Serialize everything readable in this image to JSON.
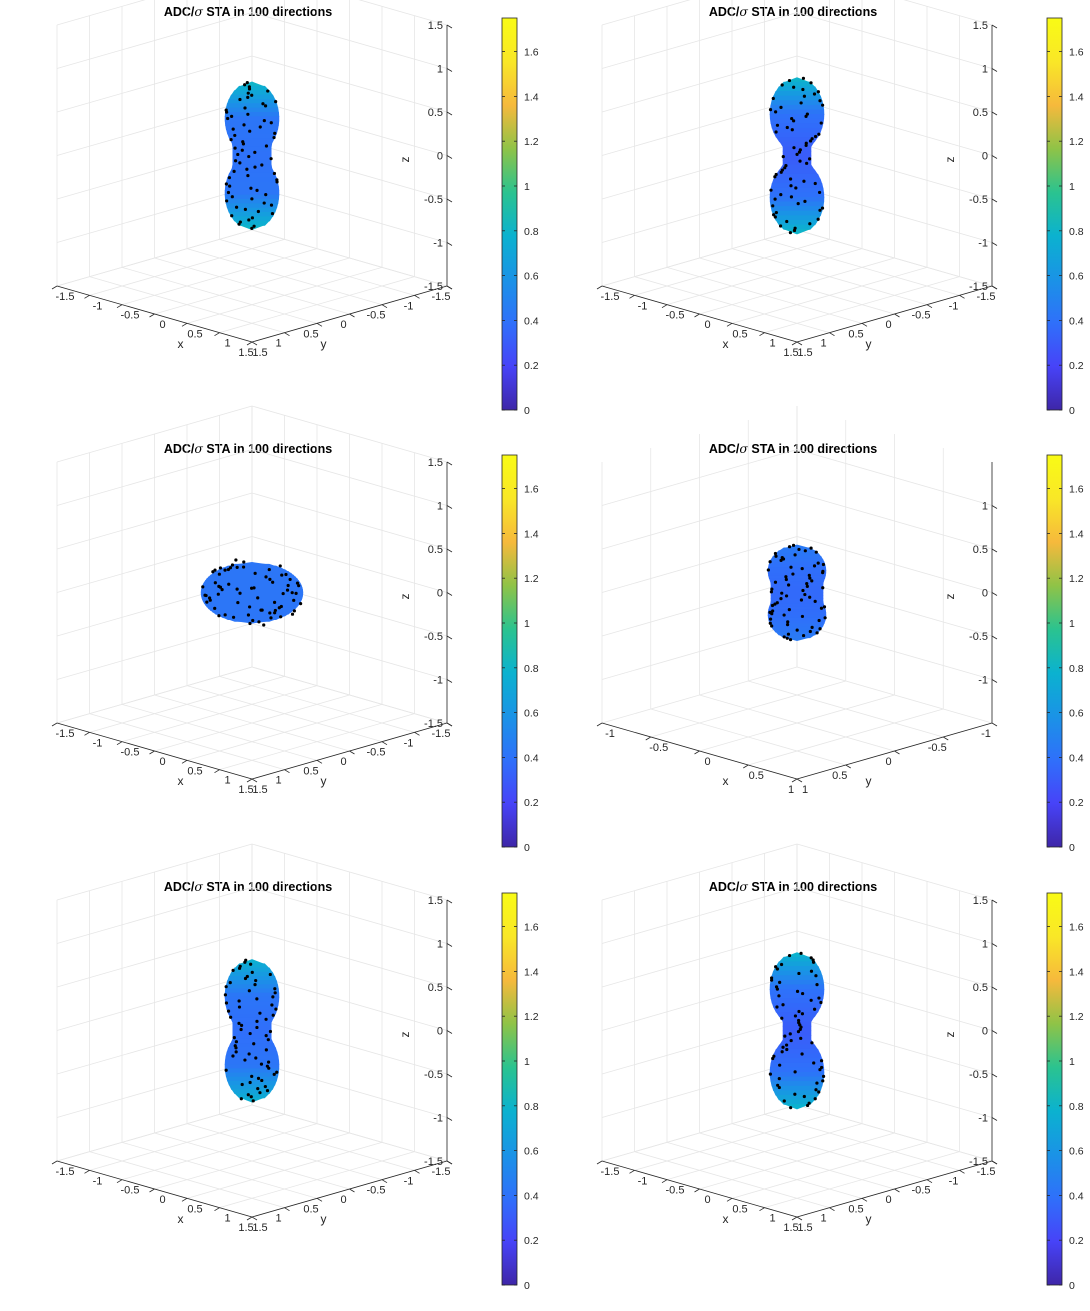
{
  "colormap": [
    "#3e26a8",
    "#4743f8",
    "#2f70fa",
    "#1a93e6",
    "#0bb2cf",
    "#2bc38f",
    "#8fc347",
    "#f6b93c",
    "#f9e727",
    "#f9fb15"
  ],
  "chart_data": [
    {
      "type": "surface3d",
      "title": "ADC/σ  STA in 100 directions",
      "title_main": "ADC/",
      "title_sigma": "σ",
      "title_rest": "  STA in 100 directions",
      "xlabel": "x",
      "ylabel": "y",
      "zlabel": "z",
      "xlim": [
        -1.5,
        1.5
      ],
      "ylim": [
        -1.5,
        1.5
      ],
      "zlim": [
        -1.5,
        1.5
      ],
      "xticks": [
        "-1.5",
        "-1",
        "-0.5",
        "0",
        "0.5",
        "1",
        "1.5"
      ],
      "yticks": [
        "-1.5",
        "-1",
        "-0.5",
        "0",
        "0.5",
        "1",
        "1.5"
      ],
      "zticks": [
        "-1.5",
        "-1",
        "-0.5",
        "0",
        "0.5",
        "1",
        "1.5"
      ],
      "colorbar": {
        "range": [
          0,
          1.75
        ],
        "ticks": [
          "0",
          "0.2",
          "0.4",
          "0.6",
          "0.8",
          "1",
          "1.2",
          "1.4",
          "1.6"
        ]
      },
      "shape": {
        "form": "peanut",
        "lobe_height": 0.85,
        "lobe_radius": 0.42,
        "waist_radius": 0.3,
        "color_max": 0.82,
        "color_min": 0.42,
        "waist_color": 0.4
      },
      "grid": true,
      "sample_points": 100
    },
    {
      "type": "surface3d",
      "title": "ADC/σ  STA in 100 directions",
      "title_main": "ADC/",
      "title_sigma": "σ",
      "title_rest": "  STA in 100 directions",
      "xlabel": "x",
      "ylabel": "y",
      "zlabel": "z",
      "xlim": [
        -1.5,
        1.5
      ],
      "ylim": [
        -1.5,
        1.5
      ],
      "zlim": [
        -1.5,
        1.5
      ],
      "xticks": [
        "-1.5",
        "-1",
        "-0.5",
        "0",
        "0.5",
        "1",
        "1.5"
      ],
      "yticks": [
        "-1.5",
        "-1",
        "-0.5",
        "0",
        "0.5",
        "1",
        "1.5"
      ],
      "zticks": [
        "-1.5",
        "-1",
        "-0.5",
        "0",
        "0.5",
        "1",
        "1.5"
      ],
      "colorbar": {
        "range": [
          0,
          1.75
        ],
        "ticks": [
          "0",
          "0.2",
          "0.4",
          "0.6",
          "0.8",
          "1",
          "1.2",
          "1.4",
          "1.6"
        ]
      },
      "shape": {
        "form": "peanut",
        "lobe_height": 0.9,
        "lobe_radius": 0.42,
        "waist_radius": 0.22,
        "color_max": 0.82,
        "color_min": 0.4,
        "waist_color": 0.3
      },
      "grid": true,
      "sample_points": 100
    },
    {
      "type": "surface3d",
      "title": "ADC/σ  STA in 100 directions",
      "title_main": "ADC/",
      "title_sigma": "σ",
      "title_rest": "  STA in 100 directions",
      "xlabel": "x",
      "ylabel": "y",
      "zlabel": "z",
      "xlim": [
        -1.5,
        1.5
      ],
      "ylim": [
        -1.5,
        1.5
      ],
      "zlim": [
        -1.5,
        1.5
      ],
      "xticks": [
        "-1.5",
        "-1",
        "-0.5",
        "0",
        "0.5",
        "1",
        "1.5"
      ],
      "yticks": [
        "-1.5",
        "-1",
        "-0.5",
        "0",
        "0.5",
        "1",
        "1.5"
      ],
      "zticks": [
        "-1.5",
        "-1",
        "-0.5",
        "0",
        "0.5",
        "1",
        "1.5"
      ],
      "colorbar": {
        "range": [
          0,
          1.75
        ],
        "ticks": [
          "0",
          "0.2",
          "0.4",
          "0.6",
          "0.8",
          "1",
          "1.2",
          "1.4",
          "1.6"
        ]
      },
      "shape": {
        "form": "oblate",
        "lobe_height": 0.35,
        "lobe_radius": 0.45,
        "waist_radius": 0.45,
        "color_max": 0.42,
        "color_min": 0.38,
        "waist_color": 0.38
      },
      "grid": true,
      "sample_points": 100
    },
    {
      "type": "surface3d",
      "title": "ADC/σ  STA in 100 directions",
      "title_main": "ADC/",
      "title_sigma": "σ",
      "title_rest": "  STA in 100 directions",
      "xlabel": "x",
      "ylabel": "y",
      "zlabel": "z",
      "xlim": [
        -1,
        1
      ],
      "ylim": [
        -1,
        1
      ],
      "zlim": [
        -1.5,
        1.5
      ],
      "xticks": [
        "-1",
        "-0.5",
        "0",
        "0.5",
        "1"
      ],
      "yticks": [
        "-1",
        "-0.5",
        "0",
        "0.5",
        "1"
      ],
      "zticks": [
        "-1",
        "-0.5",
        "0",
        "0.5",
        "1"
      ],
      "colorbar": {
        "range": [
          0,
          1.75
        ],
        "ticks": [
          "0",
          "0.2",
          "0.4",
          "0.6",
          "0.8",
          "1",
          "1.2",
          "1.4",
          "1.6"
        ]
      },
      "shape": {
        "form": "peanut",
        "lobe_height": 0.55,
        "lobe_radius": 0.3,
        "waist_radius": 0.27,
        "color_max": 0.45,
        "color_min": 0.38,
        "waist_color": 0.36
      },
      "grid": true,
      "sample_points": 100
    },
    {
      "type": "surface3d",
      "title": "ADC/σ  STA in 100 directions",
      "title_main": "ADC/",
      "title_sigma": "σ",
      "title_rest": "  STA in 100 directions",
      "xlabel": "x",
      "ylabel": "y",
      "zlabel": "z",
      "xlim": [
        -1.5,
        1.5
      ],
      "ylim": [
        -1.5,
        1.5
      ],
      "zlim": [
        -1.5,
        1.5
      ],
      "xticks": [
        "-1.5",
        "-1",
        "-0.5",
        "0",
        "0.5",
        "1",
        "1.5"
      ],
      "yticks": [
        "-1.5",
        "-1",
        "-0.5",
        "0",
        "0.5",
        "1",
        "1.5"
      ],
      "zticks": [
        "-1.5",
        "-1",
        "-0.5",
        "0",
        "0.5",
        "1",
        "1.5"
      ],
      "colorbar": {
        "range": [
          0,
          1.75
        ],
        "ticks": [
          "0",
          "0.2",
          "0.4",
          "0.6",
          "0.8",
          "1",
          "1.2",
          "1.4",
          "1.6"
        ]
      },
      "shape": {
        "form": "peanut",
        "lobe_height": 0.82,
        "lobe_radius": 0.42,
        "waist_radius": 0.3,
        "color_max": 0.78,
        "color_min": 0.42,
        "waist_color": 0.38
      },
      "grid": true,
      "sample_points": 100
    },
    {
      "type": "surface3d",
      "title": "ADC/σ  STA in 100 directions",
      "title_main": "ADC/",
      "title_sigma": "σ",
      "title_rest": "  STA in 100 directions",
      "xlabel": "x",
      "ylabel": "y",
      "zlabel": "z",
      "xlim": [
        -1.5,
        1.5
      ],
      "ylim": [
        -1.5,
        1.5
      ],
      "zlim": [
        -1.5,
        1.5
      ],
      "xticks": [
        "-1.5",
        "-1",
        "-0.5",
        "0",
        "0.5",
        "1",
        "1.5"
      ],
      "yticks": [
        "-1.5",
        "-1",
        "-0.5",
        "0",
        "0.5",
        "1",
        "1.5"
      ],
      "zticks": [
        "-1.5",
        "-1",
        "-0.5",
        "0",
        "0.5",
        "1",
        "1.5"
      ],
      "colorbar": {
        "range": [
          0,
          1.75
        ],
        "ticks": [
          "0",
          "0.2",
          "0.4",
          "0.6",
          "0.8",
          "1",
          "1.2",
          "1.4",
          "1.6"
        ]
      },
      "shape": {
        "form": "peanut",
        "lobe_height": 0.9,
        "lobe_radius": 0.42,
        "waist_radius": 0.22,
        "color_max": 0.8,
        "color_min": 0.4,
        "waist_color": 0.3
      },
      "grid": true,
      "sample_points": 100
    }
  ]
}
